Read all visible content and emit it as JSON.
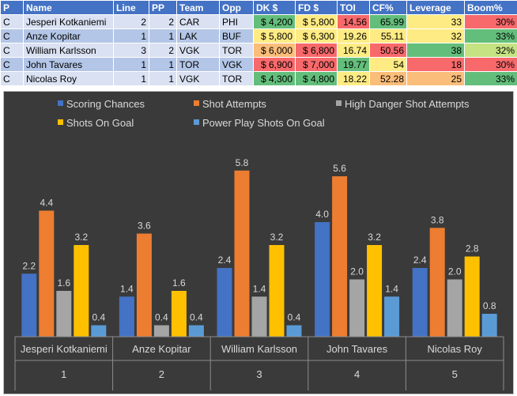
{
  "table": {
    "headers": [
      "P",
      "Name",
      "Line",
      "PP",
      "Team",
      "Opp",
      "DK $",
      "FD $",
      "TOI",
      "CF%",
      "Leverage",
      "Boom%"
    ],
    "rows": [
      {
        "p": "C",
        "name": "Jesperi Kotkaniemi",
        "line": "2",
        "pp": "2",
        "team": "CAR",
        "opp": "PHI",
        "dk": "$ 4,200",
        "fd": "$ 5,800",
        "toi": "14.56",
        "cf": "65.99",
        "leverage": "33",
        "boom": "30%",
        "colors": {
          "dk": "#63be7b",
          "fd": "#ffeb84",
          "toi": "#f8696b",
          "cf": "#63be7b",
          "leverage": "#ffeb84",
          "boom": "#f8696b"
        }
      },
      {
        "p": "C",
        "name": "Anze Kopitar",
        "line": "1",
        "pp": "1",
        "team": "LAK",
        "opp": "BUF",
        "dk": "$ 5,800",
        "fd": "$ 6,300",
        "toi": "19.26",
        "cf": "55.11",
        "leverage": "32",
        "boom": "33%",
        "colors": {
          "dk": "#ffeb84",
          "fd": "#ffeb84",
          "toi": "#ffeb84",
          "cf": "#ffeb84",
          "leverage": "#ffeb84",
          "boom": "#63be7b"
        }
      },
      {
        "p": "C",
        "name": "William Karlsson",
        "line": "3",
        "pp": "2",
        "team": "VGK",
        "opp": "TOR",
        "dk": "$ 6,000",
        "fd": "$ 6,800",
        "toi": "16.74",
        "cf": "50.56",
        "leverage": "38",
        "boom": "32%",
        "colors": {
          "dk": "#fbbd7a",
          "fd": "#f8696b",
          "toi": "#ffeb84",
          "cf": "#f8696b",
          "leverage": "#63be7b",
          "boom": "#c5e383"
        }
      },
      {
        "p": "C",
        "name": "John Tavares",
        "line": "1",
        "pp": "1",
        "team": "TOR",
        "opp": "VGK",
        "dk": "$ 6,900",
        "fd": "$ 7,000",
        "toi": "19.77",
        "cf": "54",
        "leverage": "18",
        "boom": "30%",
        "colors": {
          "dk": "#f8696b",
          "fd": "#f8696b",
          "toi": "#63be7b",
          "cf": "#ffeb84",
          "leverage": "#f8696b",
          "boom": "#f8696b"
        }
      },
      {
        "p": "C",
        "name": "Nicolas Roy",
        "line": "1",
        "pp": "1",
        "team": "VGK",
        "opp": "TOR",
        "dk": "$ 4,300",
        "fd": "$ 4,800",
        "toi": "18.22",
        "cf": "52.28",
        "leverage": "25",
        "boom": "33%",
        "colors": {
          "dk": "#63be7b",
          "fd": "#63be7b",
          "toi": "#ffeb84",
          "cf": "#fbbd7a",
          "leverage": "#fbbd7a",
          "boom": "#63be7b"
        }
      }
    ]
  },
  "chart_data": {
    "type": "bar",
    "title": "",
    "xlabel": "",
    "ylabel": "",
    "ylim": [
      0,
      6.5
    ],
    "grid": false,
    "legend_position": "top",
    "categories": [
      "Jesperi Kotkaniemi",
      "Anze Kopitar",
      "William Karlsson",
      "John Tavares",
      "Nicolas Roy"
    ],
    "category_numbers": [
      "1",
      "2",
      "3",
      "4",
      "5"
    ],
    "series": [
      {
        "name": "Scoring Chances",
        "color": "#4472c4",
        "values": [
          2.2,
          1.4,
          2.4,
          4.0,
          2.4
        ]
      },
      {
        "name": "Shot Attempts",
        "color": "#ed7d31",
        "values": [
          4.4,
          3.6,
          5.8,
          5.6,
          3.8
        ]
      },
      {
        "name": "High Danger Shot Attempts",
        "color": "#a5a5a5",
        "values": [
          1.6,
          0.4,
          1.4,
          2.0,
          2.0
        ]
      },
      {
        "name": "Shots On Goal",
        "color": "#ffc000",
        "values": [
          3.2,
          1.6,
          3.2,
          3.2,
          2.8
        ]
      },
      {
        "name": "Power Play Shots On Goal",
        "color": "#5b9bd5",
        "values": [
          0.4,
          0.4,
          0.4,
          1.4,
          0.8
        ]
      }
    ]
  }
}
